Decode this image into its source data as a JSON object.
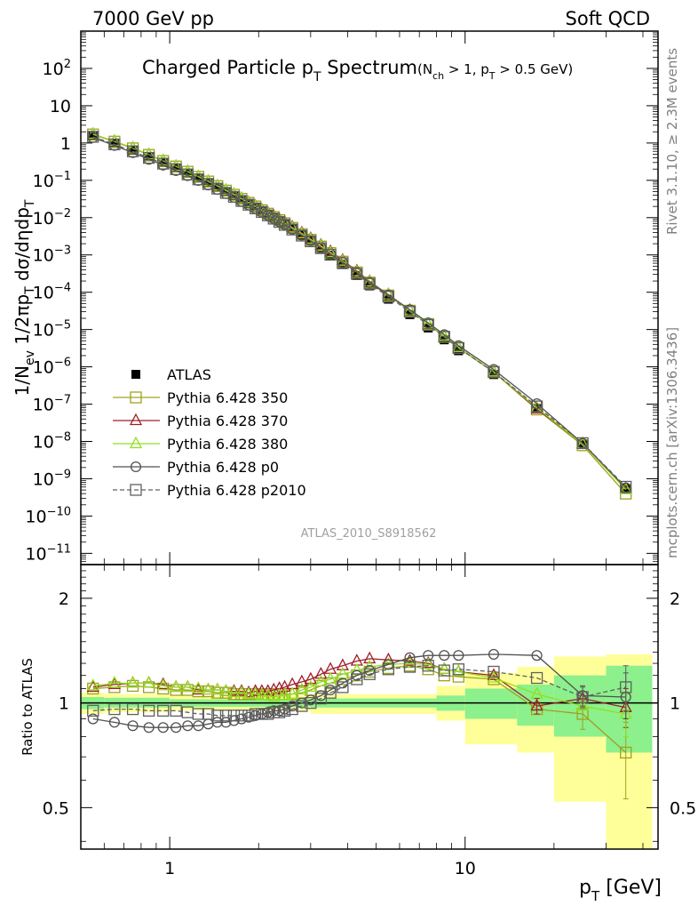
{
  "header": {
    "left": "7000 GeV pp",
    "right": "Soft QCD"
  },
  "title": {
    "main_pre": "Charged Particle p",
    "main_sub": "T",
    "main_post": " Spectrum",
    "cut": "(N",
    "cut_sub1": "ch",
    "cut_mid": " > 1, p",
    "cut_sub2": "T",
    "cut_post": " > 0.5 GeV)"
  },
  "side_labels": {
    "rivet": "Rivet 3.1.10, ≥ 2.3M events",
    "mcplots": "mcplots.cern.ch [arXiv:1306.3436]"
  },
  "watermark": "ATLAS_2010_S8918562",
  "axes": {
    "ylabel_main": "1/N_ev 1/2πp_T dσ/dηdp_T",
    "ylabel_ratio": "Ratio to ATLAS",
    "xlabel_p": "p",
    "xlabel_sub": "T",
    "xlabel_unit": "[GeV]",
    "x_ticks": [
      {
        "v": 1,
        "label": "1"
      },
      {
        "v": 10,
        "label": "10"
      }
    ],
    "y_ticks_main": [
      {
        "base": "10",
        "exp": "2"
      },
      {
        "base": "10",
        "exp": ""
      },
      {
        "base": "1",
        "exp": ""
      },
      {
        "base": "10",
        "exp": "−1"
      },
      {
        "base": "10",
        "exp": "−2"
      },
      {
        "base": "10",
        "exp": "−3"
      },
      {
        "base": "10",
        "exp": "−4"
      },
      {
        "base": "10",
        "exp": "−5"
      },
      {
        "base": "10",
        "exp": "−6"
      },
      {
        "base": "10",
        "exp": "−7"
      },
      {
        "base": "10",
        "exp": "−8"
      },
      {
        "base": "10",
        "exp": "−9"
      },
      {
        "base": "10",
        "exp": "−10"
      },
      {
        "base": "10",
        "exp": "−11"
      }
    ],
    "y_ticks_ratio": [
      "2",
      "1",
      "0.5"
    ]
  },
  "legend": [
    {
      "label": "ATLAS",
      "color": "#000000",
      "marker": "filled-square",
      "dashed": false
    },
    {
      "label": "Pythia 6.428 350",
      "color": "#a0a020",
      "marker": "open-square",
      "dashed": false
    },
    {
      "label": "Pythia 6.428 370",
      "color": "#a01e28",
      "marker": "open-triangle",
      "dashed": false
    },
    {
      "label": "Pythia 6.428 380",
      "color": "#90e020",
      "marker": "open-triangle",
      "dashed": false
    },
    {
      "label": "Pythia 6.428 p0",
      "color": "#505050",
      "marker": "open-circle",
      "dashed": false
    },
    {
      "label": "Pythia 6.428 p2010",
      "color": "#606060",
      "marker": "open-square",
      "dashed": true
    }
  ],
  "chart_data": {
    "type": "line",
    "x_scale": "log",
    "xlim": [
      0.5,
      45
    ],
    "main": {
      "y_scale": "log",
      "ylim": [
        5e-12,
        1000
      ],
      "x": [
        0.55,
        0.65,
        0.75,
        0.85,
        0.95,
        1.05,
        1.15,
        1.25,
        1.35,
        1.45,
        1.55,
        1.65,
        1.75,
        1.85,
        1.95,
        2.05,
        2.15,
        2.25,
        2.35,
        2.45,
        2.6,
        2.8,
        3.0,
        3.25,
        3.5,
        3.85,
        4.3,
        4.75,
        5.5,
        6.5,
        7.5,
        8.5,
        9.5,
        12.5,
        17.5,
        25,
        35
      ],
      "series": [
        {
          "name": "ATLAS",
          "values": [
            1.55,
            0.98,
            0.64,
            0.43,
            0.3,
            0.215,
            0.155,
            0.115,
            0.086,
            0.065,
            0.05,
            0.039,
            0.03,
            0.024,
            0.019,
            0.0152,
            0.0123,
            0.01,
            0.0082,
            0.0068,
            0.005,
            0.0034,
            0.00235,
            0.0015,
            0.00098,
            0.00056,
            0.00028,
            0.000148,
            6.5e-05,
            2.5e-05,
            1.1e-05,
            5.3e-06,
            2.7e-06,
            6.2e-07,
            7.5e-08,
            8.5e-09,
            5.5e-10
          ]
        },
        {
          "name": "Pythia 6.428 350",
          "values": [
            1.7,
            1.09,
            0.72,
            0.48,
            0.33,
            0.235,
            0.17,
            0.124,
            0.093,
            0.07,
            0.053,
            0.041,
            0.032,
            0.025,
            0.02,
            0.0158,
            0.0128,
            0.0104,
            0.0086,
            0.0071,
            0.0053,
            0.0036,
            0.00255,
            0.00168,
            0.00112,
            0.00066,
            0.00034,
            0.000182,
            8.2e-05,
            3.2e-05,
            1.4e-05,
            6.3e-06,
            3.2e-06,
            7.2e-07,
            7.2e-08,
            7.9e-09,
            4e-10
          ]
        },
        {
          "name": "Pythia 6.428 370",
          "values": [
            1.72,
            1.11,
            0.73,
            0.49,
            0.335,
            0.238,
            0.172,
            0.125,
            0.094,
            0.071,
            0.054,
            0.042,
            0.0325,
            0.0255,
            0.0205,
            0.0163,
            0.0132,
            0.0109,
            0.009,
            0.0075,
            0.0056,
            0.0039,
            0.00275,
            0.00182,
            0.00123,
            0.00072,
            0.00037,
            0.000195,
            8.6e-05,
            3.3e-05,
            1.4e-05,
            6.5e-06,
            3.3e-06,
            7.4e-07,
            7.4e-08,
            8.7e-09,
            5.4e-10
          ]
        },
        {
          "name": "Pythia 6.428 380",
          "values": [
            1.73,
            1.12,
            0.73,
            0.49,
            0.336,
            0.239,
            0.172,
            0.126,
            0.094,
            0.071,
            0.054,
            0.042,
            0.032,
            0.0253,
            0.0201,
            0.0159,
            0.0128,
            0.0104,
            0.0086,
            0.0071,
            0.0053,
            0.0037,
            0.0026,
            0.00172,
            0.00115,
            0.00068,
            0.00035,
            0.000188,
            8.4e-05,
            3.25e-05,
            1.42e-05,
            6.6e-06,
            3.3e-06,
            7.3e-07,
            7.9e-08,
            8.6e-09,
            5.1e-10
          ]
        },
        {
          "name": "Pythia 6.428 p0",
          "values": [
            1.4,
            0.86,
            0.55,
            0.365,
            0.255,
            0.182,
            0.133,
            0.099,
            0.075,
            0.057,
            0.044,
            0.035,
            0.027,
            0.0218,
            0.0174,
            0.0141,
            0.0115,
            0.0094,
            0.0078,
            0.0065,
            0.0049,
            0.0034,
            0.0024,
            0.00158,
            0.00106,
            0.00064,
            0.00034,
            0.000183,
            8.4e-05,
            3.4e-05,
            1.51e-05,
            7.3e-06,
            3.7e-06,
            8.5e-07,
            1.03e-07,
            8.9e-09,
            5.7e-10
          ]
        },
        {
          "name": "Pythia 6.428 p2010",
          "values": [
            1.47,
            0.92,
            0.6,
            0.4,
            0.28,
            0.199,
            0.144,
            0.106,
            0.08,
            0.06,
            0.046,
            0.036,
            0.028,
            0.0222,
            0.0177,
            0.0142,
            0.0115,
            0.0094,
            0.0077,
            0.0064,
            0.0048,
            0.0033,
            0.00232,
            0.00152,
            0.00101,
            0.0006,
            0.00031,
            0.000168,
            7.6e-05,
            3e-05,
            1.33e-05,
            6.4e-06,
            3.2e-06,
            7.3e-07,
            8.7e-08,
            9e-09,
            6.1e-10
          ]
        }
      ]
    },
    "ratio": {
      "y_scale": "log",
      "ylim": [
        0.38,
        2.5
      ],
      "reference_line": 1.0,
      "band_stat_color": "#8cf08c",
      "band_total_color": "#ffff99",
      "bands": [
        {
          "x0": 0.5,
          "x1": 0.6,
          "stat": [
            0.96,
            1.04
          ],
          "total": [
            0.93,
            1.07
          ]
        },
        {
          "x0": 0.6,
          "x1": 1.0,
          "stat": [
            0.97,
            1.035
          ],
          "total": [
            0.94,
            1.06
          ]
        },
        {
          "x0": 1.0,
          "x1": 3.0,
          "stat": [
            0.975,
            1.025
          ],
          "total": [
            0.95,
            1.05
          ]
        },
        {
          "x0": 3.0,
          "x1": 8.0,
          "stat": [
            0.97,
            1.03
          ],
          "total": [
            0.93,
            1.06
          ]
        },
        {
          "x0": 8.0,
          "x1": 10.0,
          "stat": [
            0.95,
            1.05
          ],
          "total": [
            0.89,
            1.12
          ]
        },
        {
          "x0": 10.0,
          "x1": 15.0,
          "stat": [
            0.9,
            1.1
          ],
          "total": [
            0.76,
            1.22
          ]
        },
        {
          "x0": 15.0,
          "x1": 20.0,
          "stat": [
            0.86,
            1.13
          ],
          "total": [
            0.72,
            1.27
          ]
        },
        {
          "x0": 20.0,
          "x1": 30.0,
          "stat": [
            0.8,
            1.2
          ],
          "total": [
            0.52,
            1.36
          ]
        },
        {
          "x0": 30.0,
          "x1": 43.0,
          "stat": [
            0.72,
            1.28
          ],
          "total": [
            0.38,
            1.38
          ]
        }
      ],
      "series": [
        {
          "name": "Pythia 6.428 350",
          "values": [
            1.1,
            1.11,
            1.12,
            1.11,
            1.1,
            1.09,
            1.09,
            1.08,
            1.08,
            1.07,
            1.07,
            1.06,
            1.06,
            1.06,
            1.06,
            1.06,
            1.06,
            1.06,
            1.06,
            1.06,
            1.06,
            1.07,
            1.09,
            1.12,
            1.14,
            1.17,
            1.2,
            1.23,
            1.26,
            1.28,
            1.25,
            1.2,
            1.19,
            1.17,
            0.96,
            0.93,
            0.72
          ]
        },
        {
          "name": "Pythia 6.428 370",
          "values": [
            1.11,
            1.13,
            1.14,
            1.14,
            1.13,
            1.11,
            1.11,
            1.09,
            1.09,
            1.09,
            1.08,
            1.08,
            1.08,
            1.07,
            1.08,
            1.08,
            1.08,
            1.09,
            1.1,
            1.11,
            1.13,
            1.15,
            1.17,
            1.21,
            1.25,
            1.28,
            1.32,
            1.34,
            1.33,
            1.32,
            1.3,
            1.25,
            1.23,
            1.2,
            0.98,
            1.03,
            0.97
          ]
        },
        {
          "name": "Pythia 6.428 380",
          "values": [
            1.12,
            1.14,
            1.14,
            1.14,
            1.12,
            1.11,
            1.11,
            1.1,
            1.09,
            1.09,
            1.08,
            1.07,
            1.07,
            1.06,
            1.06,
            1.05,
            1.05,
            1.04,
            1.05,
            1.05,
            1.06,
            1.09,
            1.11,
            1.15,
            1.17,
            1.21,
            1.24,
            1.27,
            1.29,
            1.3,
            1.29,
            1.25,
            1.23,
            1.18,
            1.06,
            0.98,
            0.93
          ]
        },
        {
          "name": "Pythia 6.428 p0",
          "values": [
            0.9,
            0.88,
            0.86,
            0.85,
            0.85,
            0.85,
            0.86,
            0.86,
            0.87,
            0.88,
            0.88,
            0.89,
            0.9,
            0.91,
            0.92,
            0.93,
            0.94,
            0.95,
            0.95,
            0.96,
            0.98,
            1.0,
            1.02,
            1.05,
            1.09,
            1.14,
            1.2,
            1.24,
            1.29,
            1.35,
            1.37,
            1.37,
            1.37,
            1.38,
            1.37,
            1.05,
            1.04
          ]
        },
        {
          "name": "Pythia 6.428 p2010",
          "values": [
            0.95,
            0.96,
            0.96,
            0.95,
            0.95,
            0.95,
            0.94,
            0.93,
            0.93,
            0.92,
            0.92,
            0.92,
            0.92,
            0.92,
            0.93,
            0.93,
            0.93,
            0.94,
            0.94,
            0.95,
            0.96,
            0.98,
            1.0,
            1.03,
            1.07,
            1.11,
            1.17,
            1.21,
            1.25,
            1.27,
            1.28,
            1.24,
            1.25,
            1.23,
            1.18,
            1.04,
            1.11
          ]
        }
      ],
      "errors": [
        {
          "series": "Pythia 6.428 350",
          "x": 35,
          "y": 0.72,
          "lo": 0.53,
          "hi": 0.88
        },
        {
          "series": "Pythia 6.428 350",
          "x": 25,
          "y": 0.93,
          "lo": 0.84,
          "hi": 1.02
        },
        {
          "series": "Pythia 6.428 370",
          "x": 35,
          "y": 0.97,
          "lo": 0.85,
          "hi": 1.1
        },
        {
          "series": "Pythia 6.428 380",
          "x": 35,
          "y": 0.93,
          "lo": 0.8,
          "hi": 1.06
        },
        {
          "series": "Pythia 6.428 p0",
          "x": 35,
          "y": 1.04,
          "lo": 0.9,
          "hi": 1.22
        },
        {
          "series": "Pythia 6.428 p2010",
          "x": 35,
          "y": 1.11,
          "lo": 0.95,
          "hi": 1.28
        },
        {
          "series": "Pythia 6.428 p0",
          "x": 25,
          "y": 1.05,
          "lo": 0.98,
          "hi": 1.12
        },
        {
          "series": "Pythia 6.428 p2010",
          "x": 25,
          "y": 1.04,
          "lo": 0.97,
          "hi": 1.11
        },
        {
          "series": "Pythia 6.428 370",
          "x": 17.5,
          "y": 0.98,
          "lo": 0.93,
          "hi": 1.03
        }
      ]
    }
  }
}
